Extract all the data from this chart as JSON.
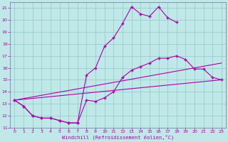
{
  "xlabel": "Windchill (Refroidissement éolien,°C)",
  "bg_color": "#c0e8e8",
  "grid_color": "#90c8c8",
  "line_color": "#aa00aa",
  "spine_color": "#7070a0",
  "xlim": [
    -0.5,
    23.5
  ],
  "ylim": [
    11.0,
    21.5
  ],
  "xticks": [
    0,
    1,
    2,
    3,
    4,
    5,
    6,
    7,
    8,
    9,
    10,
    11,
    12,
    13,
    14,
    15,
    16,
    17,
    18,
    19,
    20,
    21,
    22,
    23
  ],
  "yticks": [
    11,
    12,
    13,
    14,
    15,
    16,
    17,
    18,
    19,
    20,
    21
  ],
  "line1_x": [
    0,
    1,
    2,
    3,
    4,
    5,
    6,
    7,
    8,
    9,
    10,
    11,
    12,
    13,
    14,
    15,
    16,
    17,
    18
  ],
  "line1_y": [
    13.3,
    12.8,
    12.0,
    11.8,
    11.8,
    11.6,
    11.4,
    11.4,
    15.4,
    16.0,
    17.8,
    18.5,
    19.7,
    21.1,
    20.5,
    20.3,
    21.1,
    20.2,
    19.8
  ],
  "line2_x": [
    0,
    1,
    2,
    3,
    4,
    5,
    6,
    7,
    8,
    9,
    10,
    11,
    12,
    13,
    14,
    15,
    16,
    17,
    18,
    19,
    20,
    21,
    22,
    23
  ],
  "line2_y": [
    13.3,
    12.8,
    12.0,
    11.8,
    11.8,
    11.6,
    11.4,
    11.4,
    13.3,
    13.2,
    13.5,
    14.0,
    15.2,
    15.8,
    16.1,
    16.4,
    16.8,
    16.8,
    17.0,
    16.7,
    15.9,
    15.9,
    15.2,
    15.0
  ],
  "line3_x": [
    0,
    23
  ],
  "line3_y": [
    13.3,
    15.0
  ],
  "line4_x": [
    0,
    23
  ],
  "line4_y": [
    13.3,
    16.4
  ]
}
